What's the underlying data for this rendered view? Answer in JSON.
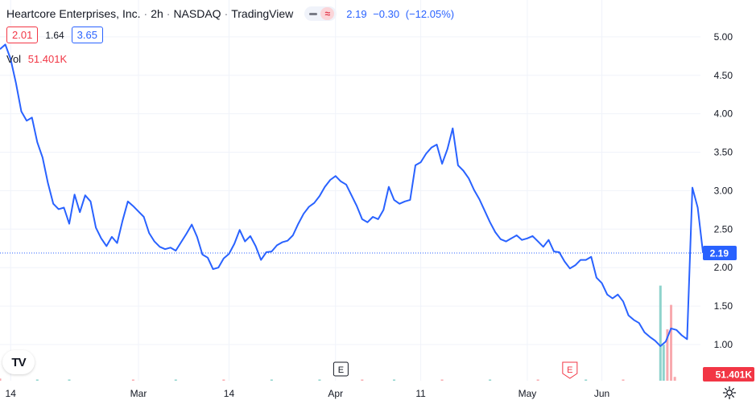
{
  "header": {
    "company": "Heartcore Enterprises, Inc.",
    "interval": "2h",
    "exchange": "NASDAQ",
    "source": "TradingView",
    "last": "2.19",
    "change": "−0.30",
    "change_pct": "(−12.05%)"
  },
  "ohlc": {
    "bid": "2.01",
    "spread": "1.64",
    "ask": "3.65"
  },
  "volume": {
    "label": "Vol",
    "value": "51.401K"
  },
  "logo_text": "TV",
  "colors": {
    "line": "#2962ff",
    "up": "#26a69a",
    "down": "#f23645",
    "grid": "#f0f3fa",
    "text": "#131722"
  },
  "icons": {
    "settings": "gear-icon",
    "toggle": "chart-style-toggle-icon",
    "earnings": "earnings-marker-icon"
  },
  "chart_data": {
    "type": "line",
    "y_ticks": [
      "5.00",
      "4.50",
      "4.00",
      "3.50",
      "3.00",
      "2.50",
      "2.00",
      "1.50",
      "1.00"
    ],
    "ylim": [
      0.53,
      5.27
    ],
    "x_ticks": [
      {
        "label": "14",
        "x": 2
      },
      {
        "label": "Mar",
        "x": 26
      },
      {
        "label": "14",
        "x": 43
      },
      {
        "label": "Apr",
        "x": 63
      },
      {
        "label": "11",
        "x": 79
      },
      {
        "label": "May",
        "x": 99
      },
      {
        "label": "Jun",
        "x": 113
      }
    ],
    "xlim": [
      0,
      130
    ],
    "grid": true,
    "last_value_label": "2.19",
    "last_value": 2.19,
    "volume_label": "51.401K",
    "earnings_markers": [
      {
        "label": "E",
        "x": 64,
        "kind": "reported"
      },
      {
        "label": "E",
        "x": 107,
        "kind": "upcoming"
      }
    ],
    "series": [
      {
        "values": [
          4.84,
          4.9,
          4.71,
          4.4,
          4.03,
          3.91,
          3.95,
          3.63,
          3.43,
          3.1,
          2.83,
          2.76,
          2.78,
          2.57,
          2.95,
          2.72,
          2.94,
          2.86,
          2.52,
          2.38,
          2.28,
          2.4,
          2.32,
          2.61,
          2.86,
          2.8,
          2.73,
          2.66,
          2.45,
          2.34,
          2.27,
          2.24,
          2.26,
          2.22,
          2.33,
          2.44,
          2.56,
          2.4,
          2.17,
          2.13,
          1.98,
          2.0,
          2.12,
          2.18,
          2.31,
          2.49,
          2.34,
          2.41,
          2.28,
          2.1,
          2.2,
          2.21,
          2.29,
          2.33,
          2.35,
          2.42,
          2.57,
          2.7,
          2.79,
          2.84,
          2.93,
          3.05,
          3.14,
          3.19,
          3.12,
          3.08,
          2.94,
          2.8,
          2.63,
          2.59,
          2.66,
          2.63,
          2.75,
          3.05,
          2.88,
          2.83,
          2.86,
          2.88,
          3.33,
          3.37,
          3.48,
          3.56,
          3.6,
          3.35,
          3.54,
          3.81,
          3.33,
          3.26,
          3.16,
          3.01,
          2.89,
          2.74,
          2.59,
          2.46,
          2.37,
          2.34,
          2.38,
          2.42,
          2.36,
          2.38,
          2.41,
          2.34,
          2.27,
          2.36,
          2.21,
          2.2,
          2.08,
          1.99,
          2.03,
          2.1,
          2.1,
          2.14,
          1.87,
          1.8,
          1.65,
          1.6,
          1.65,
          1.56,
          1.38,
          1.32,
          1.28,
          1.16,
          1.1,
          1.05,
          0.98,
          1.04,
          1.21,
          1.19,
          1.12,
          1.07,
          3.04,
          2.78,
          2.19
        ]
      }
    ],
    "volume_series": [
      {
        "x": 0,
        "v": 0.17,
        "dir": "down"
      },
      {
        "x": 7,
        "v": 0.05,
        "dir": "up"
      },
      {
        "x": 13,
        "v": 0.09,
        "dir": "up"
      },
      {
        "x": 25,
        "v": 0.04,
        "dir": "down"
      },
      {
        "x": 33,
        "v": 0.05,
        "dir": "up"
      },
      {
        "x": 42,
        "v": 0.04,
        "dir": "down"
      },
      {
        "x": 51,
        "v": 0.05,
        "dir": "up"
      },
      {
        "x": 60,
        "v": 0.04,
        "dir": "up"
      },
      {
        "x": 68,
        "v": 0.03,
        "dir": "down"
      },
      {
        "x": 74,
        "v": 0.05,
        "dir": "up"
      },
      {
        "x": 83,
        "v": 0.03,
        "dir": "down"
      },
      {
        "x": 92,
        "v": 0.04,
        "dir": "up"
      },
      {
        "x": 101,
        "v": 0.03,
        "dir": "down"
      },
      {
        "x": 110,
        "v": 0.04,
        "dir": "up"
      },
      {
        "x": 117,
        "v": 0.04,
        "dir": "down"
      },
      {
        "x": 124,
        "v": 7.4,
        "dir": "up"
      },
      {
        "x": 124.6,
        "v": 2.8,
        "dir": "up"
      },
      {
        "x": 125.3,
        "v": 4.0,
        "dir": "down"
      },
      {
        "x": 126,
        "v": 5.9,
        "dir": "down"
      },
      {
        "x": 126.7,
        "v": 0.3,
        "dir": "down"
      }
    ]
  }
}
